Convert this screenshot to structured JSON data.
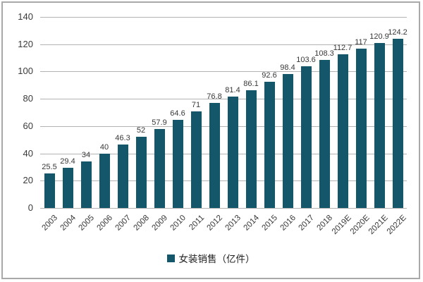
{
  "chart": {
    "legend_label": "女装销售（亿件）",
    "colors": {
      "bar": "#14566A",
      "gridline": "#b3b3b3",
      "axis_text": "#3a3a3a",
      "frame_border": "#a9a9a9",
      "background": "#ffffff"
    }
  },
  "chart_data": {
    "type": "bar",
    "title": "",
    "xlabel": "",
    "ylabel": "",
    "categories": [
      "2003",
      "2004",
      "2005",
      "2006",
      "2007",
      "2008",
      "2009",
      "2010",
      "2011",
      "2012",
      "2013",
      "2014",
      "2015",
      "2016",
      "2017",
      "2018",
      "2019E",
      "2020E",
      "2021E",
      "2022E"
    ],
    "values": [
      25.5,
      29.4,
      34,
      40,
      46.3,
      52,
      57.9,
      64.6,
      71,
      76.8,
      81.4,
      86.1,
      92.6,
      98.4,
      103.6,
      108.3,
      112.7,
      117,
      120.9,
      124.2
    ],
    "ylim": [
      0,
      140
    ],
    "yticks": [
      0,
      20,
      40,
      60,
      80,
      100,
      120,
      140
    ],
    "grid": true,
    "value_labels": true,
    "legend": [
      "女装销售（亿件）"
    ],
    "legend_position": "bottom",
    "bar_color": "#14566A"
  }
}
